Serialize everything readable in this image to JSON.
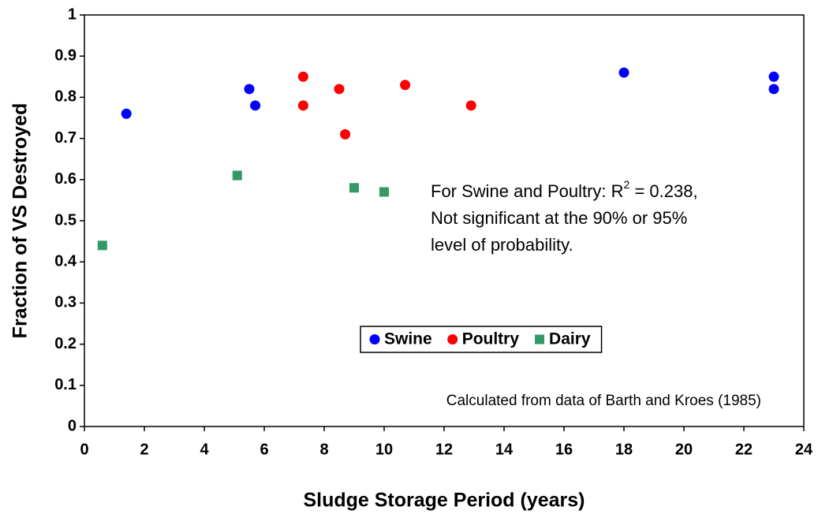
{
  "chart_data": {
    "type": "scatter",
    "xlabel": "Sludge Storage Period (years)",
    "ylabel": "Fraction of VS Destroyed",
    "xlim": [
      0,
      24
    ],
    "xticks": [
      0,
      2,
      4,
      6,
      8,
      10,
      12,
      14,
      16,
      18,
      20,
      22,
      24
    ],
    "ylim": [
      0,
      1
    ],
    "yticks": [
      0,
      0.1,
      0.2,
      0.3,
      0.4,
      0.5,
      0.6,
      0.7,
      0.8,
      0.9,
      1
    ],
    "grid": false,
    "legend": "center",
    "series": [
      {
        "name": "Swine",
        "color": "#0000ff",
        "marker": "circle",
        "x": [
          1.4,
          5.5,
          5.7,
          18,
          23,
          23
        ],
        "values": [
          0.76,
          0.82,
          0.78,
          0.86,
          0.85,
          0.82
        ]
      },
      {
        "name": "Poultry",
        "color": "#ff0000",
        "marker": "circle",
        "x": [
          7.3,
          7.3,
          8.5,
          8.7,
          10.7,
          12.9
        ],
        "values": [
          0.85,
          0.78,
          0.82,
          0.71,
          0.83,
          0.78
        ]
      },
      {
        "name": "Dairy",
        "color": "#339966",
        "marker": "square",
        "x": [
          0.6,
          5.1,
          9,
          10
        ],
        "values": [
          0.44,
          0.61,
          0.58,
          0.57
        ]
      }
    ],
    "annotation": [
      [
        "For Swine and Poultry: R",
        "2",
        " = 0.238,"
      ],
      [
        "Not significant at the 90% or 95%"
      ],
      [
        "level of probability."
      ]
    ],
    "source": "Calculated from data of Barth and Kroes (1985)"
  }
}
